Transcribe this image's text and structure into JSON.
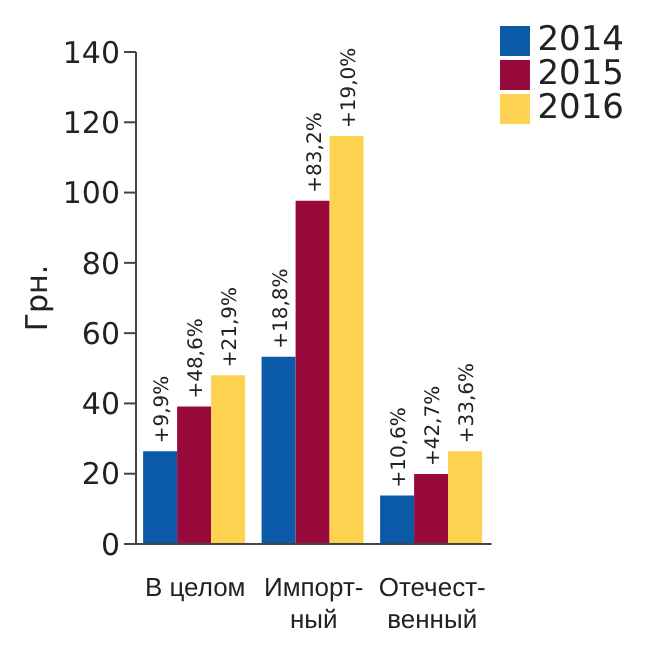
{
  "chart_data": {
    "type": "bar",
    "ylabel": "Грн.",
    "categories": [
      "В целом",
      "Импорт-\nный",
      "Отечест-\nвенный"
    ],
    "series": [
      {
        "name": "2014",
        "color": "#0b5aa8",
        "values": [
          26.4,
          53.3,
          13.8
        ]
      },
      {
        "name": "2015",
        "color": "#990a3c",
        "values": [
          39.1,
          97.7,
          19.9
        ]
      },
      {
        "name": "2016",
        "color": "#fdd250",
        "values": [
          48.0,
          116.1,
          26.4
        ]
      }
    ],
    "annotations": [
      "+9,9%",
      "+48,6%",
      "+21,9%",
      "+18,8%",
      "+83,2%",
      "+19,0%",
      "+10,6%",
      "+42,7%",
      "+33,6%"
    ],
    "ylim": [
      0,
      140
    ],
    "yticks": [
      0,
      20,
      40,
      60,
      80,
      100,
      120,
      140
    ],
    "grid": false,
    "legend": "top right"
  }
}
